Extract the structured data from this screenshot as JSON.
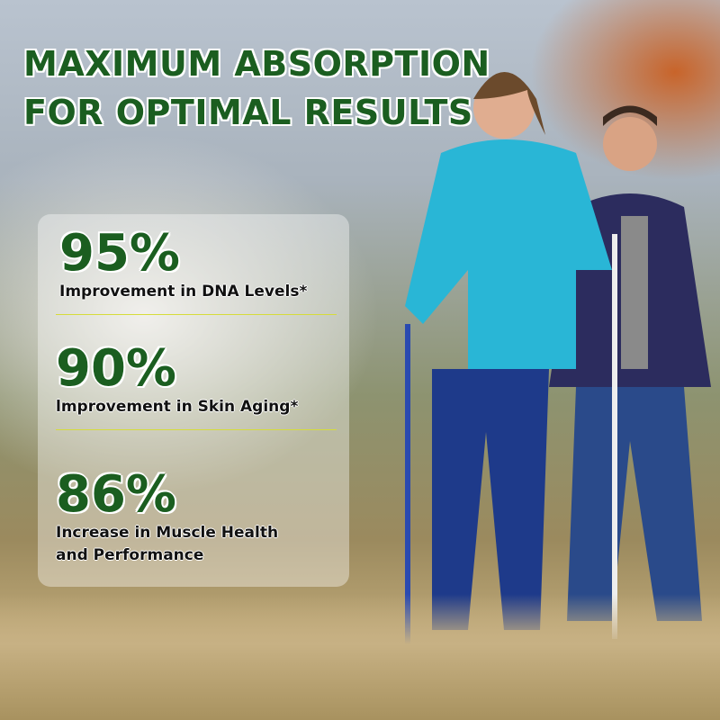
{
  "headline": {
    "line1": "MAXIMUM ABSORPTION",
    "line2": "FOR OPTIMAL RESULTS"
  },
  "stats": [
    {
      "value": "95%",
      "label": "Improvement in DNA Levels*"
    },
    {
      "value": "90%",
      "label": "lmprovement in Skin Aging*"
    },
    {
      "value": "86%",
      "label_line1": "Increase in Muscle Health",
      "label_line2": "and Performance"
    }
  ],
  "colors": {
    "headline": "#1b5e20",
    "divider": "#d6dc3a",
    "jacket": "#29b6d6",
    "pants": "#1e3a8a"
  }
}
